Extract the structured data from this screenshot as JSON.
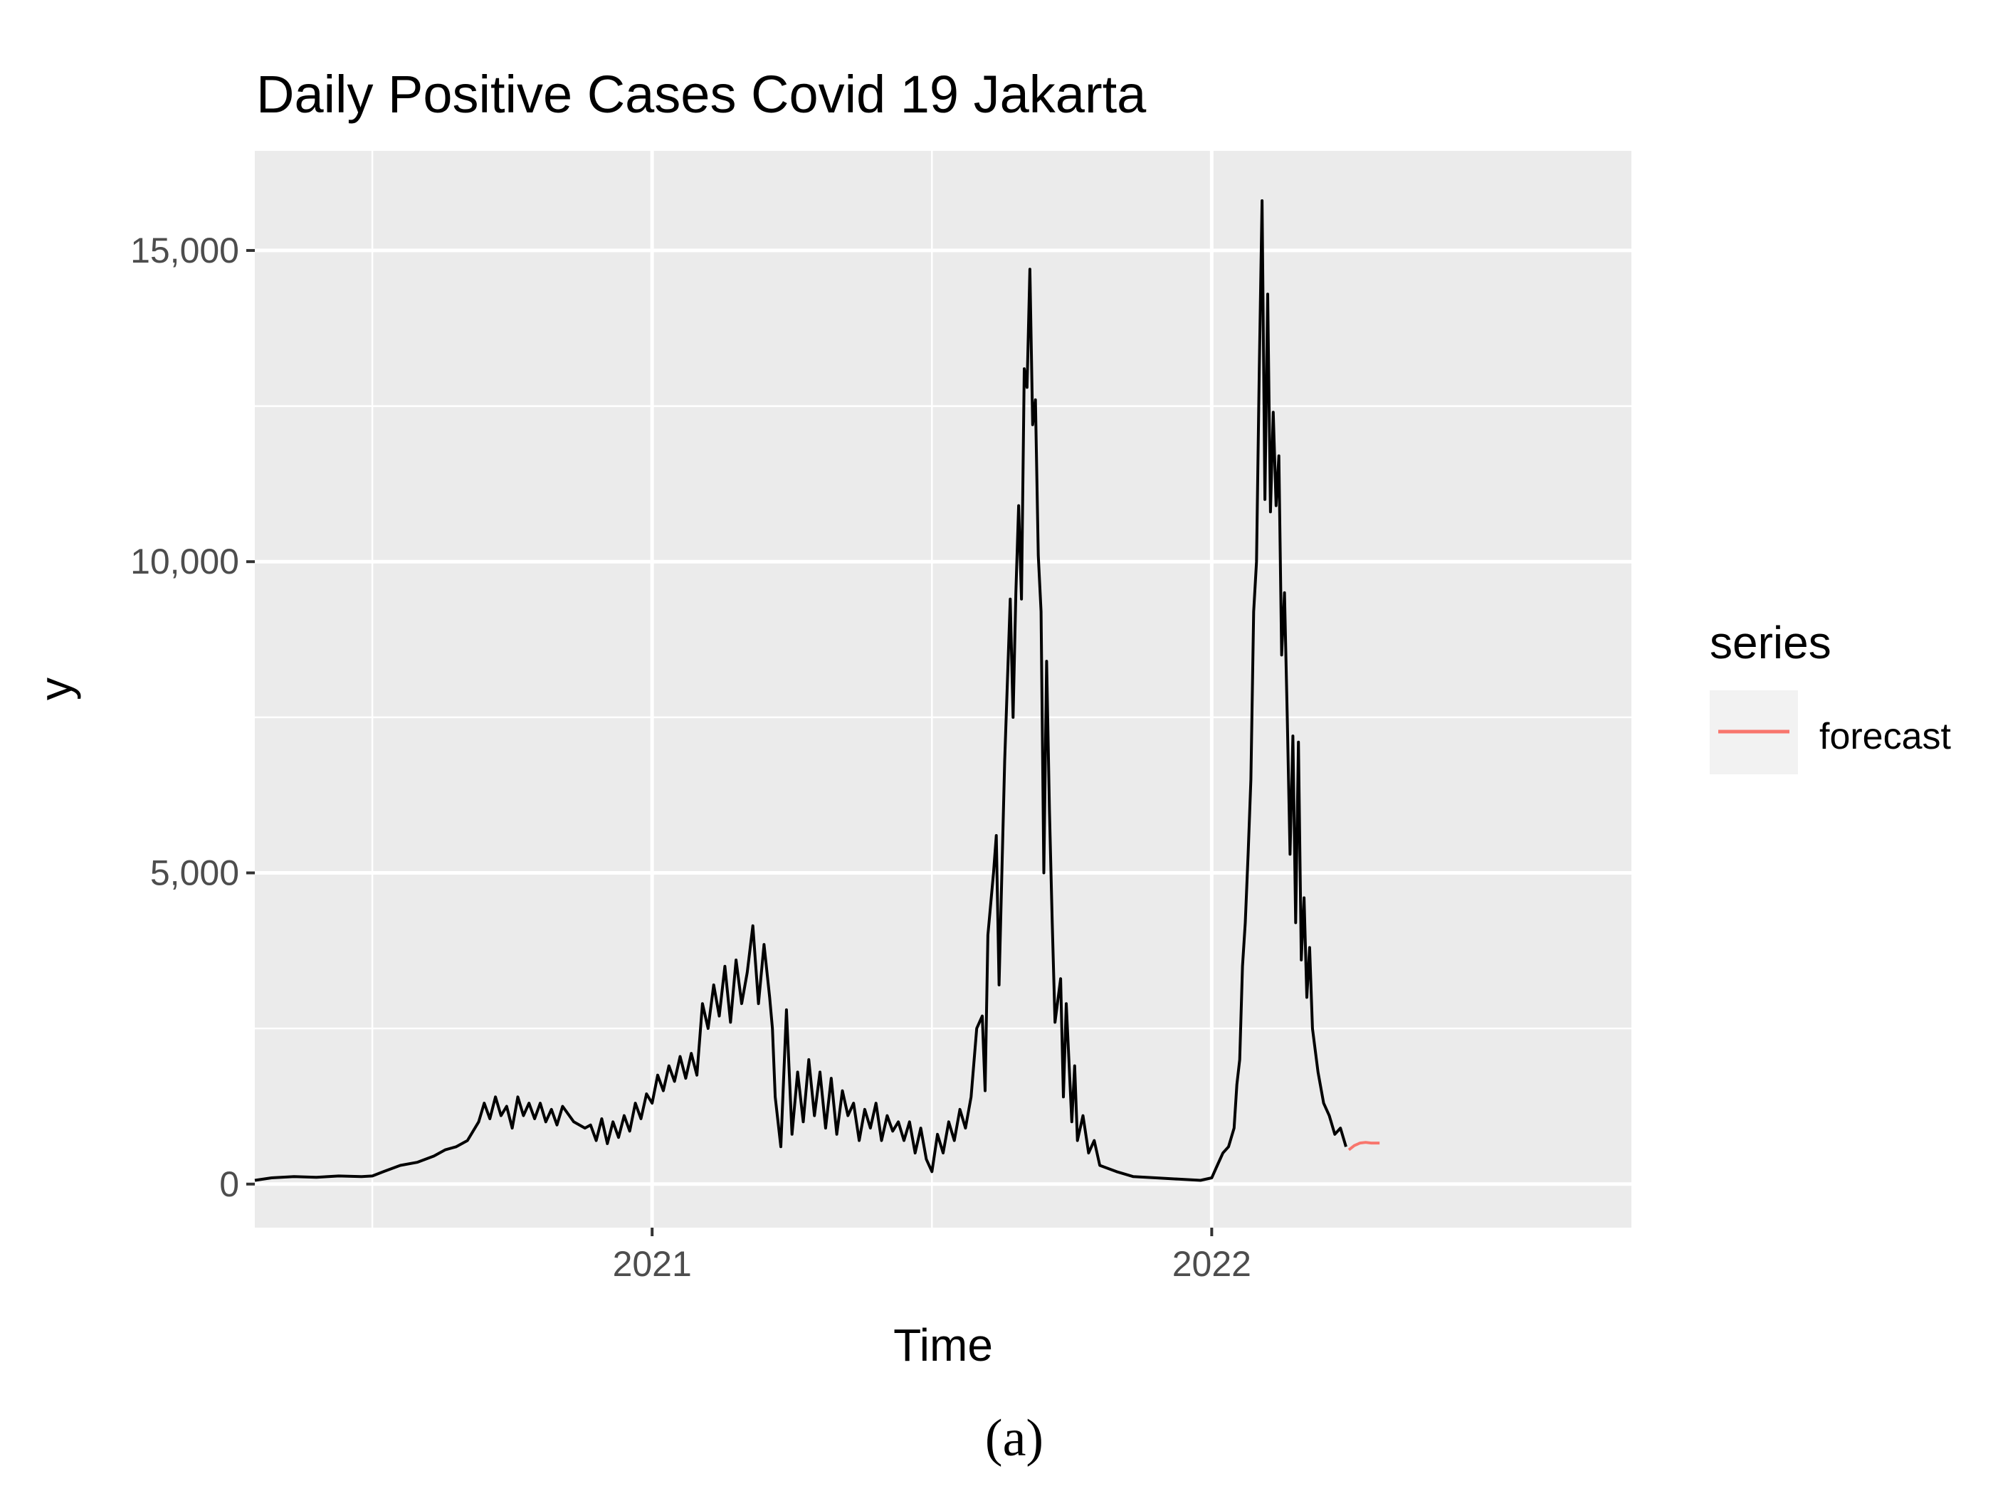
{
  "chart_data": {
    "type": "line",
    "title": "Daily Positive Cases Covid 19 Jakarta",
    "xlabel": "Time",
    "ylabel": "y",
    "x_unit": "year",
    "xlim": [
      2020.29,
      2022.75
    ],
    "ylim": [
      -700,
      16600
    ],
    "x_ticks": [
      {
        "value": 2021,
        "label": "2021"
      },
      {
        "value": 2022,
        "label": "2022"
      }
    ],
    "x_minor_ticks": [
      2020.5,
      2021.5
    ],
    "y_ticks": [
      {
        "value": 0,
        "label": "0"
      },
      {
        "value": 5000,
        "label": "5,000"
      },
      {
        "value": 10000,
        "label": "10,000"
      },
      {
        "value": 15000,
        "label": "15,000"
      }
    ],
    "y_minor_ticks": [
      2500,
      7500,
      12500
    ],
    "grid": true,
    "legend": {
      "title": "series",
      "position": "right"
    },
    "series": [
      {
        "name": "",
        "color": "#000000",
        "points": [
          [
            2020.29,
            60
          ],
          [
            2020.32,
            100
          ],
          [
            2020.36,
            120
          ],
          [
            2020.4,
            110
          ],
          [
            2020.44,
            130
          ],
          [
            2020.48,
            120
          ],
          [
            2020.5,
            130
          ],
          [
            2020.52,
            200
          ],
          [
            2020.55,
            300
          ],
          [
            2020.58,
            350
          ],
          [
            2020.61,
            450
          ],
          [
            2020.63,
            550
          ],
          [
            2020.65,
            600
          ],
          [
            2020.67,
            700
          ],
          [
            2020.69,
            1000
          ],
          [
            2020.7,
            1300
          ],
          [
            2020.71,
            1050
          ],
          [
            2020.72,
            1400
          ],
          [
            2020.73,
            1100
          ],
          [
            2020.74,
            1250
          ],
          [
            2020.75,
            900
          ],
          [
            2020.76,
            1400
          ],
          [
            2020.77,
            1100
          ],
          [
            2020.78,
            1300
          ],
          [
            2020.79,
            1050
          ],
          [
            2020.8,
            1300
          ],
          [
            2020.81,
            1000
          ],
          [
            2020.82,
            1200
          ],
          [
            2020.83,
            950
          ],
          [
            2020.84,
            1250
          ],
          [
            2020.86,
            1000
          ],
          [
            2020.88,
            900
          ],
          [
            2020.89,
            950
          ],
          [
            2020.9,
            700
          ],
          [
            2020.91,
            1050
          ],
          [
            2020.92,
            650
          ],
          [
            2020.93,
            1000
          ],
          [
            2020.94,
            750
          ],
          [
            2020.95,
            1100
          ],
          [
            2020.96,
            850
          ],
          [
            2020.97,
            1300
          ],
          [
            2020.98,
            1050
          ],
          [
            2020.99,
            1450
          ],
          [
            2021.0,
            1300
          ],
          [
            2021.01,
            1750
          ],
          [
            2021.02,
            1500
          ],
          [
            2021.03,
            1900
          ],
          [
            2021.04,
            1650
          ],
          [
            2021.05,
            2050
          ],
          [
            2021.06,
            1700
          ],
          [
            2021.07,
            2100
          ],
          [
            2021.08,
            1750
          ],
          [
            2021.09,
            2900
          ],
          [
            2021.1,
            2500
          ],
          [
            2021.11,
            3200
          ],
          [
            2021.12,
            2700
          ],
          [
            2021.13,
            3500
          ],
          [
            2021.14,
            2600
          ],
          [
            2021.15,
            3600
          ],
          [
            2021.16,
            2900
          ],
          [
            2021.17,
            3400
          ],
          [
            2021.18,
            4150
          ],
          [
            2021.19,
            2900
          ],
          [
            2021.2,
            3850
          ],
          [
            2021.21,
            3000
          ],
          [
            2021.215,
            2500
          ],
          [
            2021.22,
            1400
          ],
          [
            2021.23,
            600
          ],
          [
            2021.24,
            2800
          ],
          [
            2021.25,
            800
          ],
          [
            2021.26,
            1800
          ],
          [
            2021.27,
            1000
          ],
          [
            2021.28,
            2000
          ],
          [
            2021.29,
            1100
          ],
          [
            2021.3,
            1800
          ],
          [
            2021.31,
            900
          ],
          [
            2021.32,
            1700
          ],
          [
            2021.33,
            800
          ],
          [
            2021.34,
            1500
          ],
          [
            2021.35,
            1100
          ],
          [
            2021.36,
            1300
          ],
          [
            2021.37,
            700
          ],
          [
            2021.38,
            1200
          ],
          [
            2021.39,
            900
          ],
          [
            2021.4,
            1300
          ],
          [
            2021.41,
            700
          ],
          [
            2021.42,
            1100
          ],
          [
            2021.43,
            850
          ],
          [
            2021.44,
            1000
          ],
          [
            2021.45,
            700
          ],
          [
            2021.46,
            1000
          ],
          [
            2021.47,
            500
          ],
          [
            2021.48,
            900
          ],
          [
            2021.49,
            400
          ],
          [
            2021.5,
            200
          ],
          [
            2021.51,
            800
          ],
          [
            2021.52,
            500
          ],
          [
            2021.53,
            1000
          ],
          [
            2021.54,
            700
          ],
          [
            2021.55,
            1200
          ],
          [
            2021.56,
            900
          ],
          [
            2021.57,
            1400
          ],
          [
            2021.58,
            2500
          ],
          [
            2021.59,
            2700
          ],
          [
            2021.595,
            1500
          ],
          [
            2021.6,
            4000
          ],
          [
            2021.61,
            5000
          ],
          [
            2021.615,
            5600
          ],
          [
            2021.62,
            3200
          ],
          [
            2021.63,
            6800
          ],
          [
            2021.64,
            9400
          ],
          [
            2021.645,
            7500
          ],
          [
            2021.65,
            9500
          ],
          [
            2021.655,
            10900
          ],
          [
            2021.66,
            9400
          ],
          [
            2021.665,
            13100
          ],
          [
            2021.67,
            12800
          ],
          [
            2021.675,
            14700
          ],
          [
            2021.68,
            12200
          ],
          [
            2021.685,
            12600
          ],
          [
            2021.69,
            10100
          ],
          [
            2021.695,
            9200
          ],
          [
            2021.7,
            5000
          ],
          [
            2021.705,
            8400
          ],
          [
            2021.71,
            6000
          ],
          [
            2021.715,
            4200
          ],
          [
            2021.72,
            2600
          ],
          [
            2021.73,
            3300
          ],
          [
            2021.735,
            1400
          ],
          [
            2021.74,
            2900
          ],
          [
            2021.75,
            1000
          ],
          [
            2021.755,
            1900
          ],
          [
            2021.76,
            700
          ],
          [
            2021.77,
            1100
          ],
          [
            2021.78,
            500
          ],
          [
            2021.79,
            700
          ],
          [
            2021.8,
            300
          ],
          [
            2021.83,
            200
          ],
          [
            2021.86,
            120
          ],
          [
            2021.9,
            100
          ],
          [
            2021.94,
            80
          ],
          [
            2021.98,
            60
          ],
          [
            2022.0,
            100
          ],
          [
            2022.01,
            300
          ],
          [
            2022.02,
            500
          ],
          [
            2022.03,
            600
          ],
          [
            2022.04,
            900
          ],
          [
            2022.045,
            1600
          ],
          [
            2022.05,
            2000
          ],
          [
            2022.055,
            3500
          ],
          [
            2022.06,
            4200
          ],
          [
            2022.065,
            5300
          ],
          [
            2022.07,
            6500
          ],
          [
            2022.075,
            9200
          ],
          [
            2022.08,
            10000
          ],
          [
            2022.085,
            13100
          ],
          [
            2022.09,
            15800
          ],
          [
            2022.095,
            11000
          ],
          [
            2022.1,
            14300
          ],
          [
            2022.105,
            10800
          ],
          [
            2022.11,
            12400
          ],
          [
            2022.115,
            10900
          ],
          [
            2022.12,
            11700
          ],
          [
            2022.125,
            8500
          ],
          [
            2022.13,
            9500
          ],
          [
            2022.135,
            7500
          ],
          [
            2022.14,
            5300
          ],
          [
            2022.145,
            7200
          ],
          [
            2022.15,
            4200
          ],
          [
            2022.155,
            7100
          ],
          [
            2022.16,
            3600
          ],
          [
            2022.165,
            4600
          ],
          [
            2022.17,
            3000
          ],
          [
            2022.175,
            3800
          ],
          [
            2022.18,
            2500
          ],
          [
            2022.19,
            1800
          ],
          [
            2022.2,
            1300
          ],
          [
            2022.21,
            1100
          ],
          [
            2022.22,
            800
          ],
          [
            2022.23,
            900
          ],
          [
            2022.24,
            600
          ]
        ]
      },
      {
        "name": "forecast",
        "color": "#f8766d",
        "points": [
          [
            2022.245,
            550
          ],
          [
            2022.255,
            620
          ],
          [
            2022.265,
            660
          ],
          [
            2022.275,
            670
          ],
          [
            2022.285,
            660
          ],
          [
            2022.3,
            660
          ]
        ]
      }
    ]
  },
  "caption": "(a)"
}
